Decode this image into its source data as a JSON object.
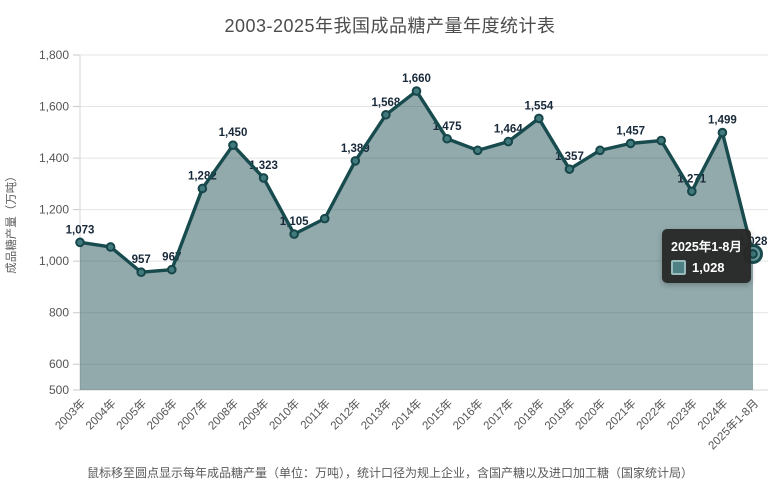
{
  "title": "2003-2025年我国成品糖产量年度统计表",
  "y_axis_title": "成品糖产量（万吨）",
  "footer": "鼠标移至圆点显示每年成品糖产量（单位：万吨），统计口径为规上企业，含国产糖以及进口加工糖（国家统计局）",
  "tooltip": {
    "title": "2025年1-8月",
    "value": "1,028"
  },
  "colors": {
    "line": "#184b4e",
    "area": "rgba(24,75,78,0.47)",
    "marker_fill": "#417a7c",
    "marker_stroke": "#16464a",
    "highlight_fill": "#6d9b9d",
    "label": "#18293a",
    "tooltip_swatch": "#4e8184"
  },
  "chart_data": {
    "type": "area",
    "title": "2003-2025年我国成品糖产量年度统计表",
    "xlabel": "",
    "ylabel": "成品糖产量（万吨）",
    "categories": [
      "2003年",
      "2004年",
      "2005年",
      "2006年",
      "2007年",
      "2008年",
      "2009年",
      "2010年",
      "2011年",
      "2012年",
      "2013年",
      "2014年",
      "2015年",
      "2016年",
      "2017年",
      "2018年",
      "2019年",
      "2020年",
      "2021年",
      "2022年",
      "2023年",
      "2024年",
      "2025年1-8月"
    ],
    "values": [
      1073,
      1055,
      957,
      967,
      1282,
      1450,
      1323,
      1105,
      1165,
      1389,
      1568,
      1660,
      1475,
      1430,
      1464,
      1554,
      1357,
      1430,
      1457,
      1468,
      1271,
      1499,
      1028
    ],
    "point_labels": [
      "1,073",
      "",
      "957",
      "967",
      "1,282",
      "1,450",
      "1,323",
      "1,105",
      "",
      "1,389",
      "1,568",
      "1,660",
      "1,475",
      "",
      "1,464",
      "1,554",
      "1,357",
      "",
      "1,457",
      "",
      "1,271",
      "1,499",
      "1,028"
    ],
    "ylim": [
      500,
      1800
    ],
    "y_ticks": [
      {
        "v": 500,
        "label": "500"
      },
      {
        "v": 600,
        "label": "600"
      },
      {
        "v": 800,
        "label": "800"
      },
      {
        "v": 1000,
        "label": "1,000"
      },
      {
        "v": 1200,
        "label": "1,200"
      },
      {
        "v": 1400,
        "label": "1,400"
      },
      {
        "v": 1600,
        "label": "1,600"
      },
      {
        "v": 1800,
        "label": "1,800"
      }
    ],
    "grid": true,
    "legend_position": "none",
    "highlight_index": 22
  }
}
